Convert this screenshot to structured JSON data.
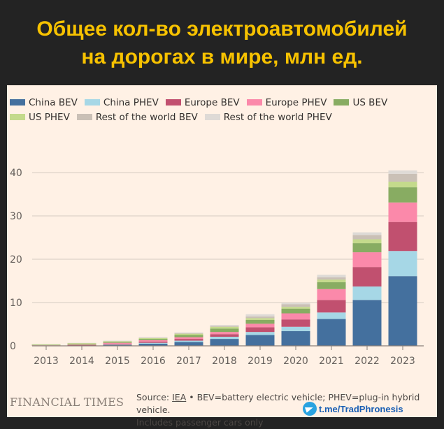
{
  "header": {
    "title_line1": "Общее кол-во электроавтомобилей",
    "title_line2": "на дорогах в мире, млн ед."
  },
  "chart_data": {
    "type": "bar",
    "stacked": true,
    "title": "",
    "xlabel": "",
    "ylabel": "",
    "ylim": [
      0,
      42
    ],
    "yticks": [
      0,
      10,
      20,
      30,
      40
    ],
    "grid": true,
    "legend_position": "top-left",
    "categories": [
      "2013",
      "2014",
      "2015",
      "2016",
      "2017",
      "2018",
      "2019",
      "2020",
      "2021",
      "2022",
      "2023"
    ],
    "series": [
      {
        "name": "China BEV",
        "color": "#44709e",
        "values": [
          0.02,
          0.05,
          0.2,
          0.5,
          0.9,
          1.6,
          2.5,
          3.4,
          6.2,
          10.6,
          16.1
        ]
      },
      {
        "name": "China PHEV",
        "color": "#a6d7e6",
        "values": [
          0.01,
          0.02,
          0.1,
          0.2,
          0.3,
          0.5,
          0.7,
          1.0,
          1.5,
          3.1,
          5.8
        ]
      },
      {
        "name": "Europe BEV",
        "color": "#c1506f",
        "values": [
          0.05,
          0.1,
          0.2,
          0.3,
          0.4,
          0.6,
          1.1,
          1.7,
          2.9,
          4.5,
          6.7
        ]
      },
      {
        "name": "Europe PHEV",
        "color": "#fb89aa",
        "values": [
          0.05,
          0.1,
          0.2,
          0.3,
          0.4,
          0.5,
          0.8,
          1.4,
          2.5,
          3.4,
          4.5
        ]
      },
      {
        "name": "US BEV",
        "color": "#88ac62",
        "values": [
          0.1,
          0.2,
          0.2,
          0.3,
          0.5,
          0.8,
          0.9,
          1.1,
          1.6,
          2.1,
          3.5
        ]
      },
      {
        "name": "US PHEV",
        "color": "#c4da8c",
        "values": [
          0.1,
          0.15,
          0.15,
          0.2,
          0.3,
          0.4,
          0.4,
          0.4,
          0.6,
          0.9,
          1.3
        ]
      },
      {
        "name": "Rest of the world BEV",
        "color": "#cac0b6",
        "values": [
          0.02,
          0.03,
          0.05,
          0.1,
          0.1,
          0.2,
          0.4,
          0.6,
          0.5,
          1.0,
          1.8
        ]
      },
      {
        "name": "Rest of the world PHEV",
        "color": "#dedad6",
        "values": [
          0.05,
          0.05,
          0.1,
          0.1,
          0.2,
          0.2,
          0.5,
          0.3,
          0.6,
          0.6,
          0.8
        ]
      }
    ]
  },
  "footer": {
    "brand": "FINANCIAL TIMES",
    "source_prefix": "Source: ",
    "source_link": "IEA",
    "source_rest": " • BEV=battery electric vehicle; PHEV=plug-in hybrid vehicle.",
    "note": "Includes passenger cars only",
    "telegram": "t.me/TradPhronesis"
  }
}
